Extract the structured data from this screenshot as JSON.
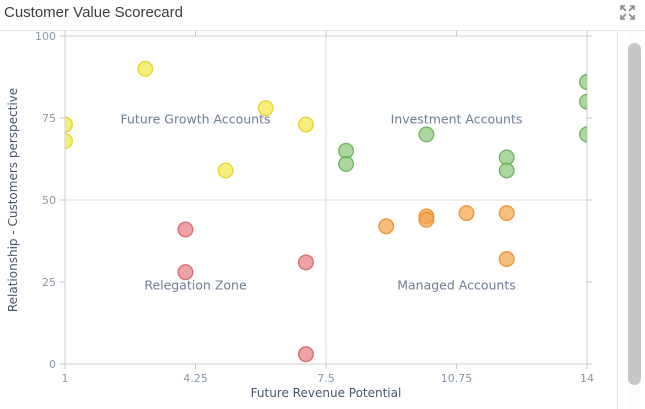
{
  "header": {
    "title": "Customer Value Scorecard"
  },
  "colors": {
    "title_text": "#3d3d3d",
    "plot_border": "#cfcfcf",
    "quadrant_line": "#dddddd",
    "tick_mark": "#c6c6c6",
    "tick_label": "#8a97a8",
    "axis_title": "#47566b",
    "quadrant_label": "#6e7d92",
    "scrollbar_thumb": "#c6c6c6",
    "expand_icon": "#8c8c8c"
  },
  "chart_data": {
    "type": "scatter",
    "title": "Customer Value Scorecard",
    "xlabel": "Future Revenue Potential",
    "ylabel": "Relationship - Customers perspective",
    "xlim": [
      1,
      14
    ],
    "ylim": [
      0,
      100
    ],
    "xticks": [
      1,
      4.25,
      7.5,
      10.75,
      14
    ],
    "yticks": [
      0,
      25,
      50,
      75,
      100
    ],
    "grid": "quadrant-dividers-only",
    "quadrant_lines": {
      "x": 7.5,
      "y": 50
    },
    "quadrant_labels": [
      {
        "text": "Future Growth Accounts",
        "x": 4.25,
        "y": 74.5
      },
      {
        "text": "Investment Accounts",
        "x": 10.75,
        "y": 74.5
      },
      {
        "text": "Relegation Zone",
        "x": 4.25,
        "y": 24
      },
      {
        "text": "Managed Accounts",
        "x": 10.75,
        "y": 24
      }
    ],
    "series": [
      {
        "name": "Future Growth Accounts",
        "color": "#f6e84f",
        "border": "#e2d02e",
        "points": [
          [
            1,
            73
          ],
          [
            1,
            68
          ],
          [
            3,
            90
          ],
          [
            5,
            59
          ],
          [
            6,
            78
          ],
          [
            7,
            73
          ]
        ]
      },
      {
        "name": "Investment Accounts",
        "color": "#90c97f",
        "border": "#6bae57",
        "points": [
          [
            8,
            65
          ],
          [
            8,
            61
          ],
          [
            10,
            70
          ],
          [
            12,
            63
          ],
          [
            12,
            59
          ],
          [
            14,
            86
          ],
          [
            14,
            80
          ],
          [
            14,
            70
          ]
        ]
      },
      {
        "name": "Relegation Zone",
        "color": "#e8868a",
        "border": "#d56468",
        "points": [
          [
            4,
            41
          ],
          [
            4,
            28
          ],
          [
            7,
            31
          ],
          [
            7,
            3
          ]
        ]
      },
      {
        "name": "Managed Accounts",
        "color": "#f7a750",
        "border": "#ec8f2c",
        "points": [
          [
            9,
            42
          ],
          [
            10,
            45
          ],
          [
            10,
            44
          ],
          [
            11,
            46
          ],
          [
            12,
            46
          ],
          [
            12,
            32
          ]
        ]
      }
    ]
  }
}
